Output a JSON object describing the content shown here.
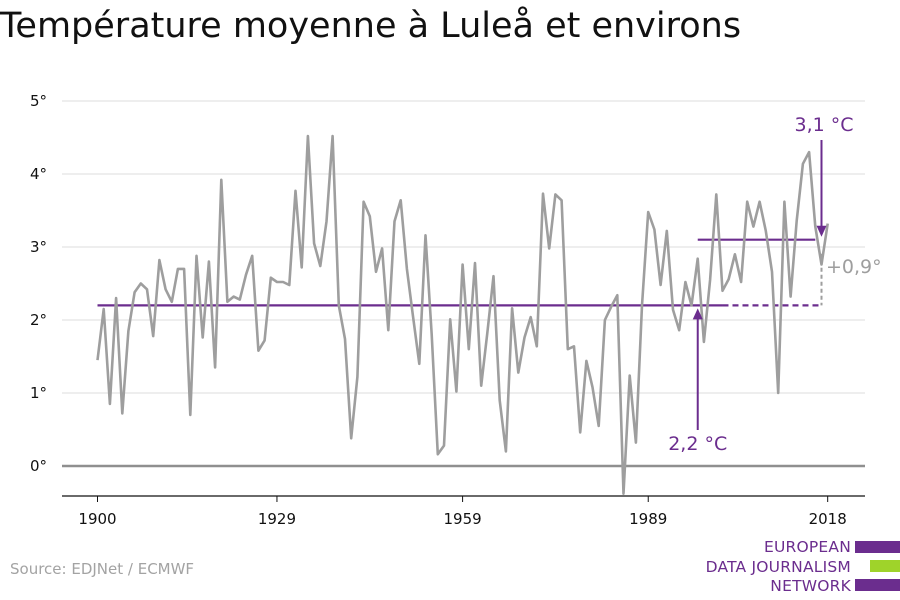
{
  "title": "Température moyenne à Luleå et environs",
  "source": "Source: EDJNet / ECMWF",
  "logo": {
    "lines": [
      "EUROPEAN",
      "DATA JOURNALISM",
      "NETWORK"
    ],
    "colors": [
      "#6b2d8e",
      "#9fd32a",
      "#6b2d8e"
    ]
  },
  "colors": {
    "series": "#9e9e9e",
    "reference": "#6b2d8e",
    "grid": "#dddddd",
    "zero_line": "#8f8f8f",
    "annotation_grey": "#9e9e9e"
  },
  "chart_data": {
    "type": "line",
    "title": "Température moyenne à Luleå et environs",
    "xlabel": "",
    "ylabel": "",
    "x_ticks": [
      1900,
      1929,
      1959,
      1989,
      2018
    ],
    "y_ticks": [
      0,
      1,
      2,
      3,
      4,
      5
    ],
    "y_tick_labels": [
      "0°",
      "1°",
      "2°",
      "3°",
      "4°",
      "5°"
    ],
    "xlim": [
      1895,
      2024
    ],
    "ylim": [
      -0.4,
      5
    ],
    "grid": true,
    "series": [
      {
        "x": [
          1900,
          1901,
          1902,
          1903,
          1904,
          1905,
          1906,
          1907,
          1908,
          1909,
          1910,
          1911,
          1912,
          1913,
          1914,
          1915,
          1916,
          1917,
          1918,
          1919,
          1920,
          1921,
          1922,
          1923,
          1924,
          1925,
          1926,
          1927,
          1928,
          1929,
          1930,
          1931,
          1932,
          1933,
          1934,
          1935,
          1936,
          1937,
          1938,
          1939,
          1940,
          1941,
          1942,
          1943,
          1944,
          1945,
          1946,
          1947,
          1948,
          1949,
          1950,
          1951,
          1952,
          1953,
          1954,
          1955,
          1956,
          1957,
          1958,
          1959,
          1960,
          1961,
          1962,
          1963,
          1964,
          1965,
          1966,
          1967,
          1968,
          1969,
          1970,
          1971,
          1972,
          1973,
          1974,
          1975,
          1976,
          1977,
          1978,
          1979,
          1980,
          1981,
          1982,
          1983,
          1984,
          1985,
          1986,
          1987,
          1988,
          1989,
          1990,
          1991,
          1992,
          1993,
          1994,
          1995,
          1996,
          1997,
          1998,
          1999,
          2000,
          2001,
          2002,
          2003,
          2004,
          2005,
          2006,
          2007,
          2008,
          2009,
          2010,
          2011,
          2012,
          2013,
          2014,
          2015,
          2016,
          2017,
          2018
        ],
        "values": [
          1.45,
          2.15,
          0.85,
          2.3,
          0.72,
          1.85,
          2.38,
          2.5,
          2.42,
          1.78,
          2.82,
          2.42,
          2.25,
          2.7,
          2.7,
          0.7,
          2.88,
          1.76,
          2.8,
          1.35,
          3.92,
          2.25,
          2.32,
          2.28,
          2.62,
          2.88,
          1.58,
          1.72,
          2.58,
          2.52,
          2.52,
          2.48,
          3.77,
          2.72,
          4.52,
          3.05,
          2.74,
          3.35,
          4.52,
          2.2,
          1.74,
          0.38,
          1.22,
          3.62,
          3.42,
          2.66,
          2.98,
          1.86,
          3.35,
          3.64,
          2.7,
          2.04,
          1.4,
          3.16,
          1.8,
          0.16,
          0.28,
          2.01,
          1.02,
          2.76,
          1.6,
          2.78,
          1.1,
          1.82,
          2.6,
          0.9,
          0.2,
          2.16,
          1.28,
          1.76,
          2.04,
          1.64,
          3.73,
          2.98,
          3.72,
          3.64,
          1.6,
          1.64,
          0.46,
          1.44,
          1.08,
          0.55,
          2.0,
          2.18,
          2.34,
          -0.38,
          1.24,
          0.32,
          2.2,
          3.48,
          3.24,
          2.48,
          3.22,
          2.14,
          1.86,
          2.52,
          2.2,
          2.84,
          1.7,
          2.55,
          3.72,
          2.4,
          2.56,
          2.9,
          2.52,
          3.62,
          3.28,
          3.62,
          3.22,
          2.66,
          1.0,
          3.62,
          2.32,
          3.36,
          4.14,
          4.3,
          3.28,
          2.76,
          3.32
        ]
      }
    ],
    "annotations": [
      {
        "label": "2,2 °C",
        "value": 2.2,
        "x_from": 1900,
        "x_to": 2017
      },
      {
        "label": "3,1 °C",
        "value": 3.1,
        "x_from": 1997,
        "x_to": 2016
      },
      {
        "label": "+0,9°"
      }
    ]
  }
}
